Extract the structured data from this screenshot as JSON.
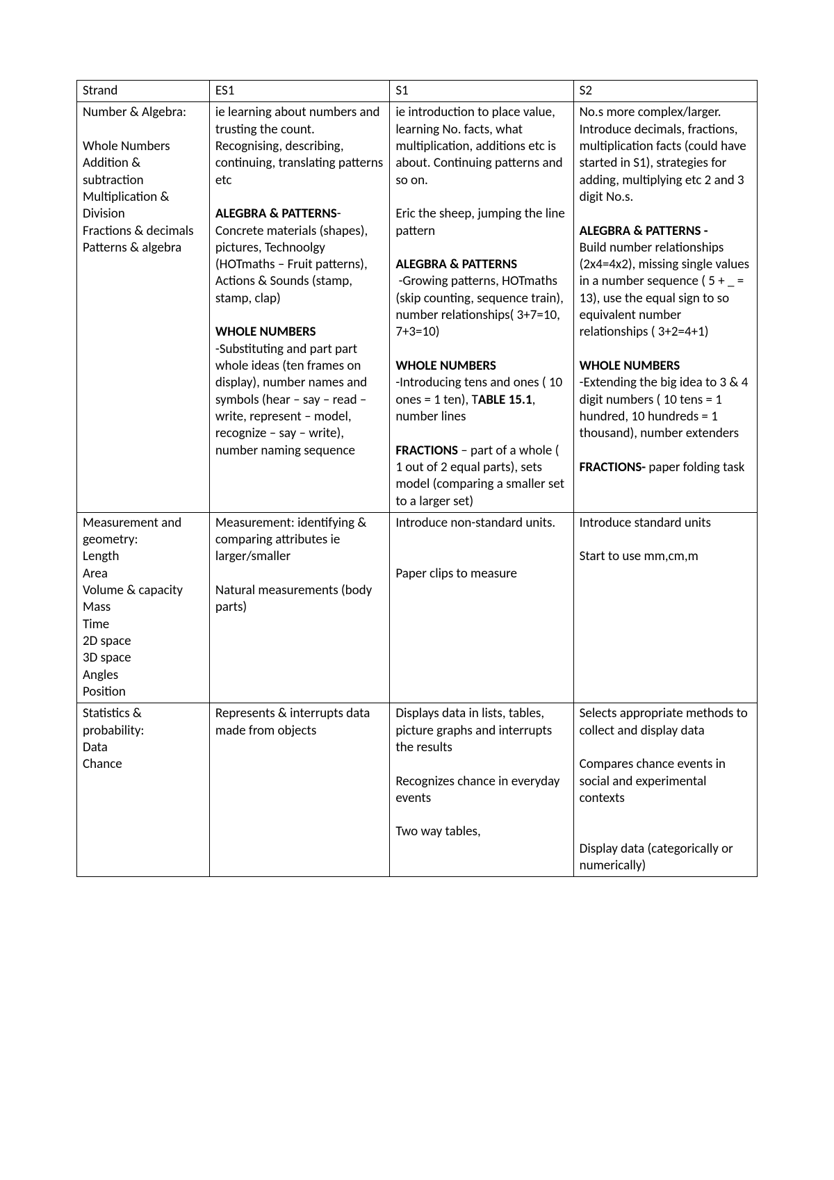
{
  "table": {
    "columns": [
      "c0",
      "c1",
      "c2",
      "c3"
    ],
    "header": {
      "strand": "Strand",
      "es1": "ES1",
      "s1": "S1",
      "s2": "S2"
    },
    "rows": {
      "r1": {
        "strand": "Number & Algebra:\n\nWhole Numbers\nAddition & subtraction\nMultiplication & Division\nFractions & decimals\nPatterns & algebra",
        "es1": {
          "p1": "ie learning about numbers and trusting the count.\nRecognising, describing, continuing, translating patterns etc",
          "h1": "ALEGBRA & PATTERNS",
          "p2": "- Concrete materials (shapes), pictures, Technoolgy (HOTmaths – Fruit patterns), Actions & Sounds (stamp, stamp, clap)",
          "h2": "WHOLE NUMBERS",
          "p3": "-Substituting and part part whole ideas (ten frames on display), number names and symbols (hear – say – read – write, represent – model, recognize – say – write), number naming sequence"
        },
        "s1": {
          "p1": "ie introduction to place value, learning No. facts, what multiplication, additions etc is about. Continuing patterns and so on.\n\nEric the sheep, jumping the line pattern",
          "h1": "ALEGBRA & PATTERNS",
          "p2": " -Growing patterns, HOTmaths (skip counting, sequence train), number relationships( 3+7=10, 7+3=10)",
          "h2": "WHOLE NUMBERS",
          "p3a": "-Introducing tens and ones ( 10 ones = 1 ten), T",
          "p3b": "ABLE 15.1",
          "p3c": ", number lines",
          "h3a": "FRACTIONS",
          "p4": " – part of a whole ( 1 out of 2 equal parts), sets model (comparing a smaller set to a larger set)"
        },
        "s2": {
          "p1": "No.s more complex/larger. Introduce decimals, fractions, multiplication facts (could have started in S1), strategies for adding, multiplying etc 2 and 3 digit No.s.",
          "h1": "ALEGBRA & PATTERNS - ",
          "p2": "Build number relationships (2x4=4x2), missing single values in a number sequence ( 5 + _ = 13), use the equal sign to so equivalent number relationships ( 3+2=4+1)",
          "h2": "WHOLE NUMBERS",
          "p3": "-Extending the big idea to 3 & 4 digit numbers ( 10 tens = 1 hundred, 10 hundreds = 1 thousand), number extenders",
          "h3": "FRACTIONS- ",
          "p4": "paper folding task"
        }
      },
      "r2": {
        "strand": "Measurement and geometry:\nLength\nArea\nVolume & capacity\nMass\nTime\n2D space\n3D space\nAngles\nPosition",
        "es1": "Measurement: identifying & comparing attributes ie larger/smaller\n\nNatural measurements (body parts)",
        "s1": "Introduce non-standard units.\n\n\nPaper clips to measure",
        "s2": "Introduce standard units\n\nStart to use mm,cm,m"
      },
      "r3": {
        "strand": "Statistics & probability:\nData\nChance",
        "es1": "Represents & interrupts data made from objects",
        "s1": "Displays data in lists, tables, picture graphs and interrupts the results\n\nRecognizes chance in everyday events\n\nTwo way tables,",
        "s2": "Selects appropriate methods to collect and display data\n\nCompares chance events in social and experimental contexts\n\n\nDisplay data (categorically or numerically)\n"
      }
    }
  }
}
